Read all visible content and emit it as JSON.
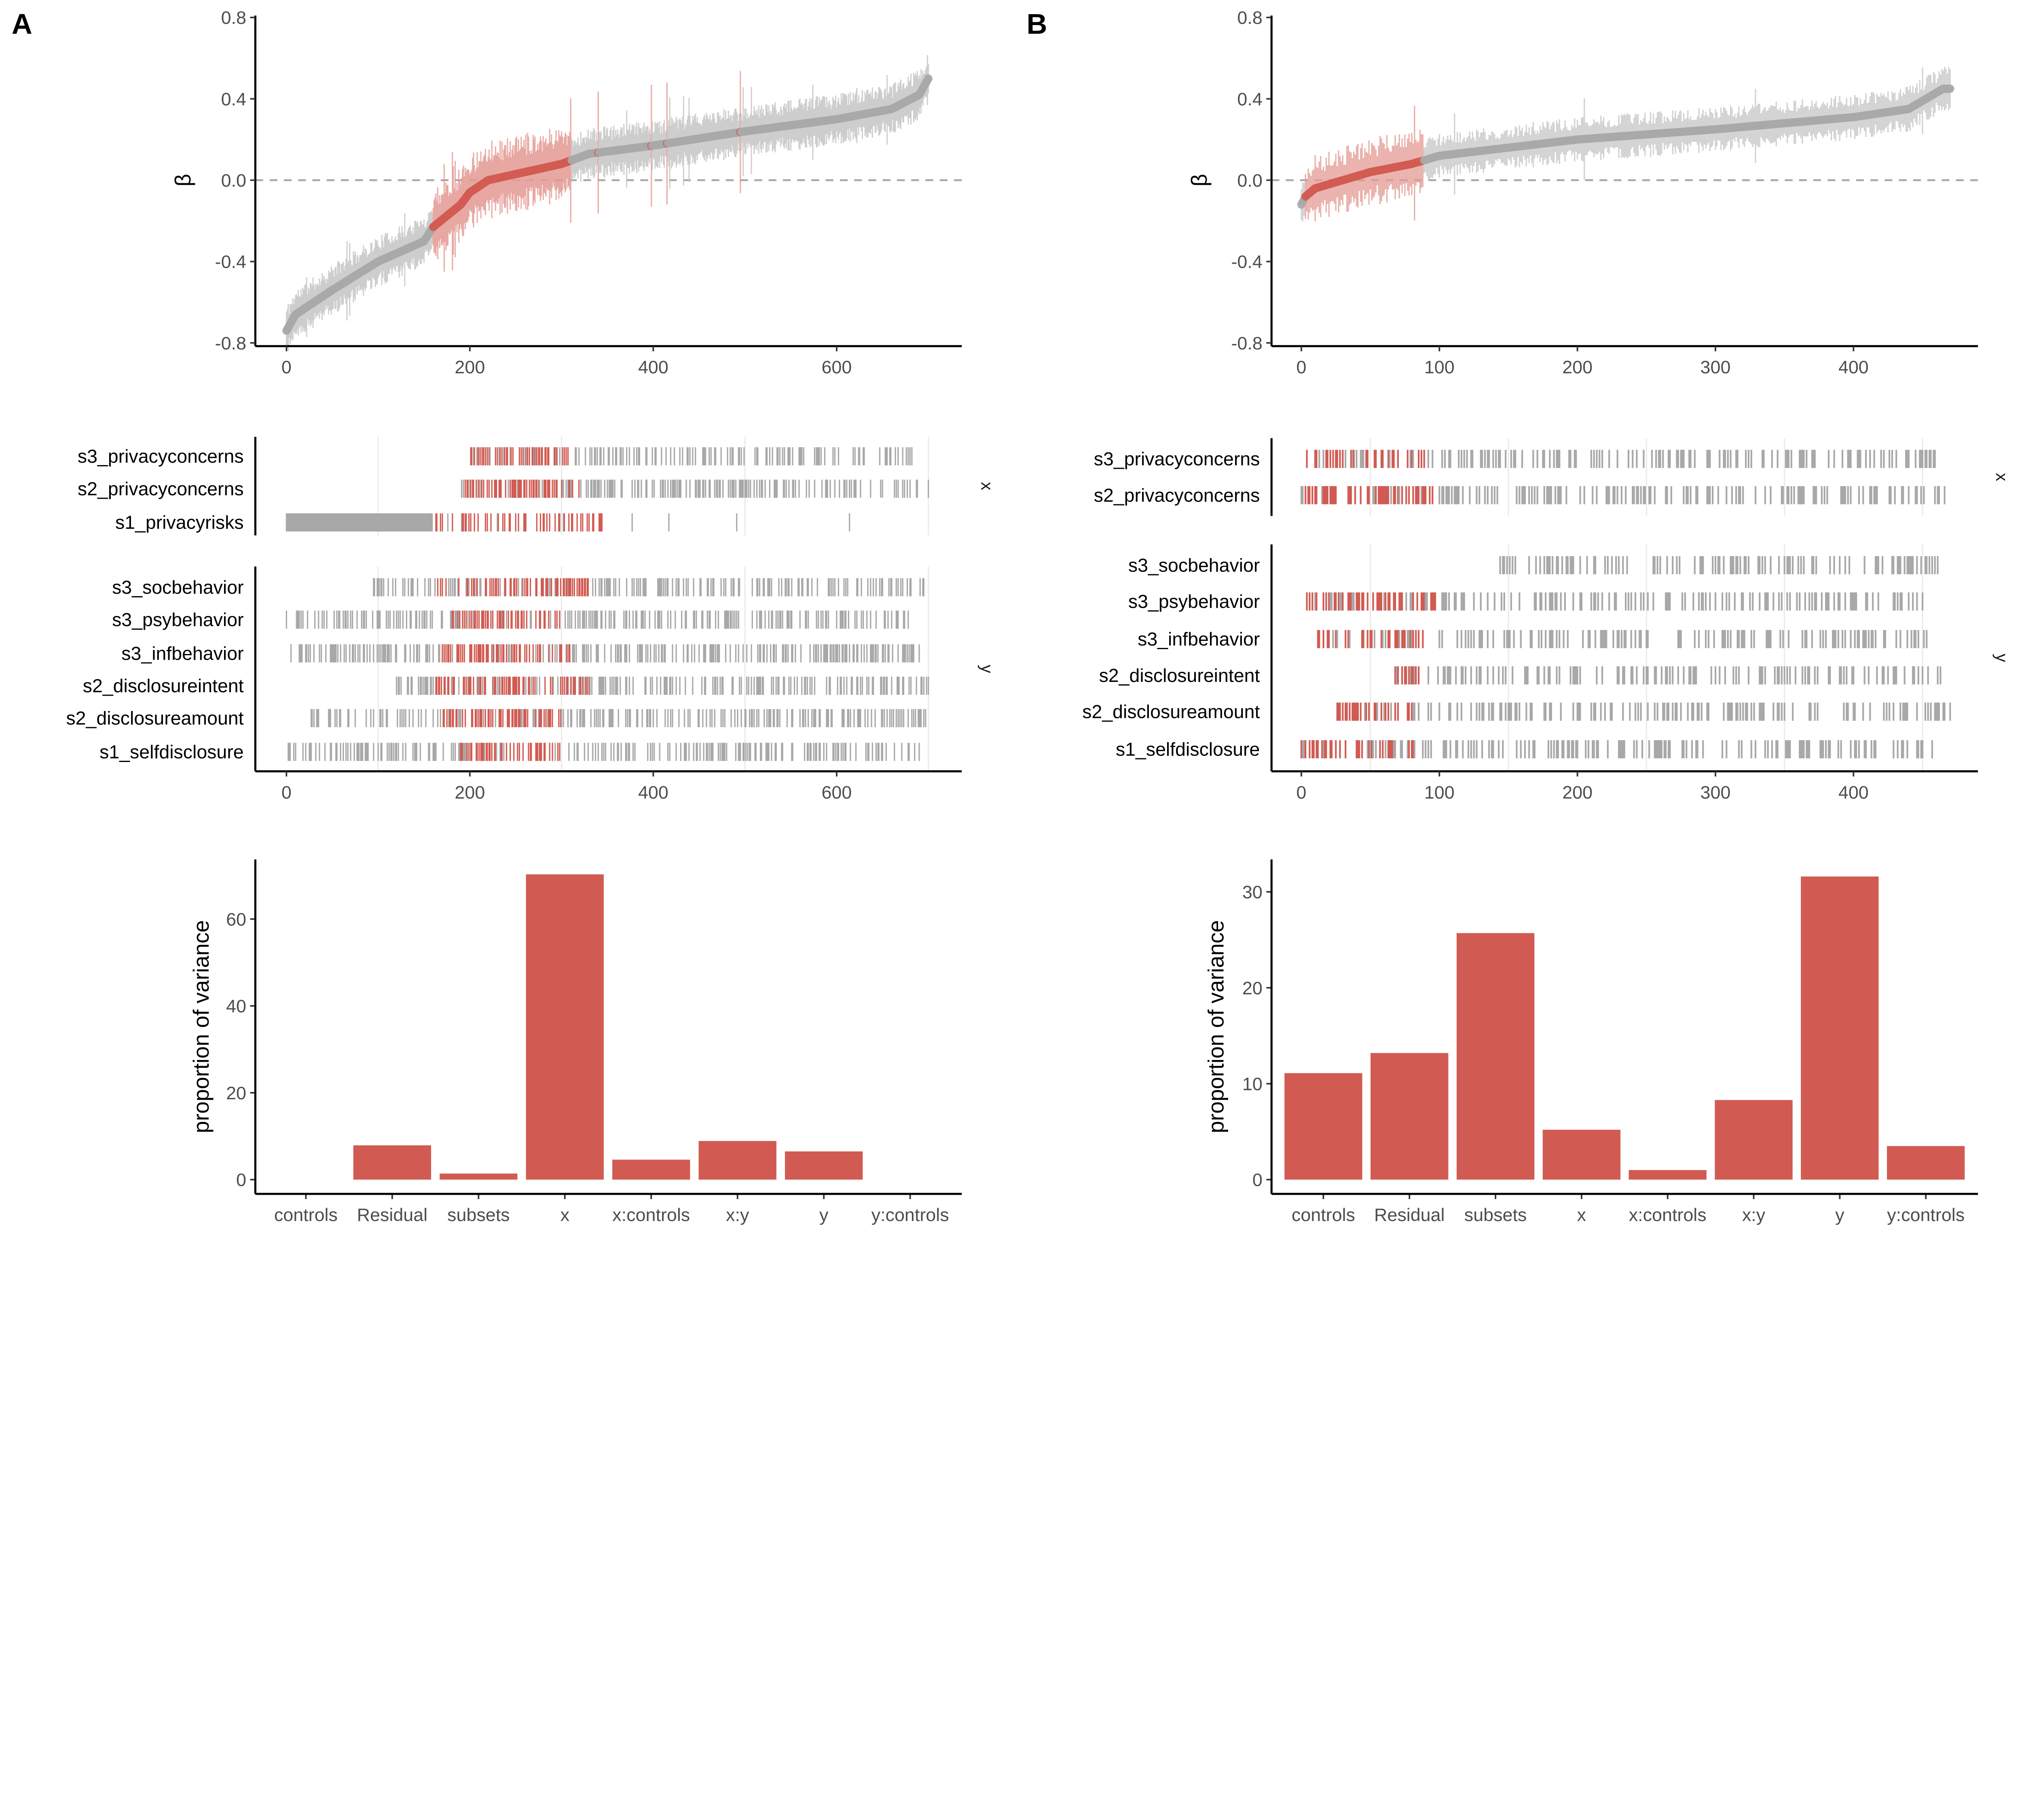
{
  "panel_labels": [
    "A",
    "B"
  ],
  "colors": {
    "highlight": "#d15b52",
    "point": "#a8a8a8",
    "ci": "#c6c6c6",
    "ci_highlight": "#e39a94",
    "reference": "#aaaaaa",
    "grid": "#ebebeb",
    "bar": "#d15b52"
  },
  "chart_data": [
    {
      "panel": "A",
      "type": "scatter",
      "ylabel": "β",
      "xlim": [
        0,
        700
      ],
      "ylim": [
        -0.8,
        0.8
      ],
      "xticks": [
        "0",
        "200",
        "400",
        "600"
      ],
      "yticks": [
        "-0.8",
        "-0.4",
        "0.0",
        "0.4",
        "0.8"
      ],
      "reference_line": 0,
      "curve": [
        [
          0,
          -0.74
        ],
        [
          10,
          -0.66
        ],
        [
          50,
          -0.54
        ],
        [
          100,
          -0.4
        ],
        [
          150,
          -0.3
        ],
        [
          160,
          -0.23
        ],
        [
          190,
          -0.12
        ],
        [
          200,
          -0.06
        ],
        [
          220,
          0.0
        ],
        [
          250,
          0.03
        ],
        [
          300,
          0.08
        ],
        [
          330,
          0.13
        ],
        [
          400,
          0.17
        ],
        [
          500,
          0.24
        ],
        [
          600,
          0.3
        ],
        [
          660,
          0.35
        ],
        [
          690,
          0.42
        ],
        [
          700,
          0.5
        ]
      ],
      "ci_halfwidth": 0.09,
      "highlight_ranges": [
        [
          160,
          310
        ]
      ],
      "highlight_points": [
        340,
        398,
        415,
        495
      ]
    },
    {
      "panel": "A",
      "type": "scatter",
      "xlim": [
        0,
        700
      ],
      "xticks": [
        "0",
        "200",
        "400",
        "600"
      ],
      "gridlines_x": [
        100,
        300,
        500,
        700
      ],
      "facets": [
        {
          "strip": "x",
          "rows": [
            {
              "label": "s3_privacyconcerns",
              "range": [
                199,
                690
              ],
              "red_range": [
                199,
                312
              ]
            },
            {
              "label": "s2_privacyconcerns",
              "range": [
                190,
                700
              ],
              "red_range": [
                195,
                320
              ]
            },
            {
              "label": "s1_privacyrisks",
              "range": [
                0,
                700
              ],
              "red_range": [
                160,
                345
              ],
              "solid_range": [
                0,
                160
              ]
            }
          ]
        },
        {
          "strip": "y",
          "rows": [
            {
              "label": "s3_socbehavior",
              "range": [
                95,
                695
              ],
              "red_range": [
                165,
                330
              ]
            },
            {
              "label": "s3_psybehavior",
              "range": [
                0,
                680
              ],
              "red_range": [
                180,
                300
              ]
            },
            {
              "label": "s3_infbehavior",
              "range": [
                5,
                690
              ],
              "red_range": [
                170,
                310
              ]
            },
            {
              "label": "s2_disclosureintent",
              "range": [
                118,
                700
              ],
              "red_range": [
                160,
                330
              ]
            },
            {
              "label": "s2_disclosureamount",
              "range": [
                22,
                700
              ],
              "red_range": [
                170,
                300
              ]
            },
            {
              "label": "s1_selfdisclosure",
              "range": [
                0,
                690
              ],
              "red_range": [
                190,
                300
              ]
            }
          ]
        }
      ]
    },
    {
      "panel": "A",
      "type": "bar",
      "ylabel": "proportion of variance",
      "categories": [
        "controls",
        "Residual",
        "subsets",
        "x",
        "x:controls",
        "x:y",
        "y",
        "y:controls"
      ],
      "values": [
        0,
        7.9,
        1.4,
        70.3,
        4.6,
        8.9,
        6.5,
        0
      ],
      "ylim": [
        0,
        73
      ],
      "yticks": [
        "0",
        "20",
        "40",
        "60"
      ]
    },
    {
      "panel": "B",
      "type": "scatter",
      "ylabel": "β",
      "xlim": [
        0,
        470
      ],
      "ylim": [
        -0.8,
        0.8
      ],
      "xticks": [
        "0",
        "100",
        "200",
        "300",
        "400"
      ],
      "yticks": [
        "-0.8",
        "-0.4",
        "0.0",
        "0.4",
        "0.8"
      ],
      "reference_line": 0,
      "curve": [
        [
          0,
          -0.12
        ],
        [
          3,
          -0.08
        ],
        [
          10,
          -0.04
        ],
        [
          30,
          0.0
        ],
        [
          50,
          0.04
        ],
        [
          80,
          0.08
        ],
        [
          100,
          0.12
        ],
        [
          200,
          0.2
        ],
        [
          300,
          0.25
        ],
        [
          400,
          0.31
        ],
        [
          440,
          0.35
        ],
        [
          465,
          0.45
        ]
      ],
      "ci_halfwidth": 0.08,
      "highlight_ranges": [
        [
          3,
          88
        ]
      ],
      "highlight_points": []
    },
    {
      "panel": "B",
      "type": "scatter",
      "xlim": [
        0,
        470
      ],
      "xticks": [
        "0",
        "100",
        "200",
        "300",
        "400"
      ],
      "gridlines_x": [
        50,
        150,
        250,
        350,
        450
      ],
      "facets": [
        {
          "strip": "x",
          "rows": [
            {
              "label": "s3_privacyconcerns",
              "range": [
                2,
                460
              ],
              "red_range": [
                2,
                90
              ]
            },
            {
              "label": "s2_privacyconcerns",
              "range": [
                0,
                470
              ],
              "red_range": [
                3,
                98
              ]
            }
          ]
        },
        {
          "strip": "y",
          "rows": [
            {
              "label": "s3_socbehavior",
              "range": [
                143,
                465
              ],
              "red_range": null
            },
            {
              "label": "s3_psybehavior",
              "range": [
                2,
                450
              ],
              "red_range": [
                2,
                100
              ]
            },
            {
              "label": "s3_infbehavior",
              "range": [
                10,
                455
              ],
              "red_range": [
                10,
                88
              ]
            },
            {
              "label": "s2_disclosureintent",
              "range": [
                62,
                465
              ],
              "red_range": [
                62,
                85
              ]
            },
            {
              "label": "s2_disclosureamount",
              "range": [
                25,
                470
              ],
              "red_range": [
                25,
                80
              ]
            },
            {
              "label": "s1_selfdisclosure",
              "range": [
                0,
                458
              ],
              "red_range": [
                0,
                82
              ]
            }
          ]
        }
      ]
    },
    {
      "panel": "B",
      "type": "bar",
      "ylabel": "proportion of variance",
      "categories": [
        "controls",
        "Residual",
        "subsets",
        "x",
        "x:controls",
        "x:y",
        "y",
        "y:controls"
      ],
      "values": [
        11.1,
        13.2,
        25.7,
        5.2,
        1.0,
        8.3,
        31.6,
        3.5
      ],
      "ylim": [
        0,
        33
      ],
      "yticks": [
        "0",
        "10",
        "20",
        "30"
      ]
    }
  ]
}
